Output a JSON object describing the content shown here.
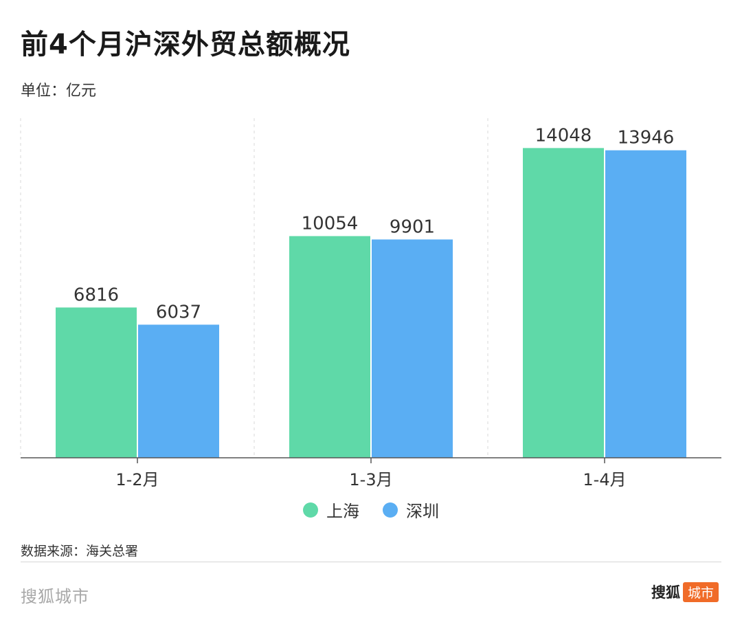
{
  "title": "前4个月沪深外贸总额概况",
  "unit_label": "单位：亿元",
  "source_label": "数据来源：海关总署",
  "footer": {
    "brand_left": "搜狐城市",
    "brand_right_name": "搜狐",
    "brand_right_tag": "城市"
  },
  "colors": {
    "shanghai": "#5fd9a8",
    "shenzhen": "#5aaef3",
    "brand_orange": "#f06b28"
  },
  "chart_data": {
    "type": "bar",
    "categories": [
      "1-2月",
      "1-3月",
      "1-4月"
    ],
    "series": [
      {
        "name": "上海",
        "values": [
          6816,
          10054,
          14048
        ]
      },
      {
        "name": "深圳",
        "values": [
          6037,
          9901,
          13946
        ]
      }
    ],
    "ylim": [
      0,
      15400
    ],
    "grid": "vertical-dashed",
    "legend_position": "bottom-center"
  }
}
